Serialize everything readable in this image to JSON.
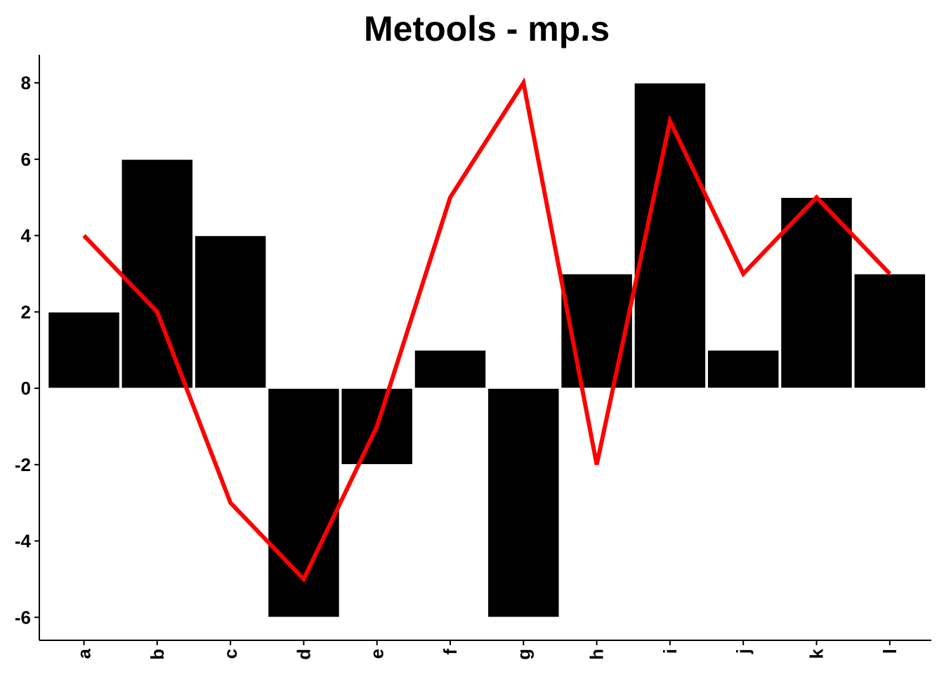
{
  "chart_data": {
    "type": "bar",
    "title": "Metools - mp.s",
    "xlabel": "",
    "ylabel": "",
    "categories": [
      "a",
      "b",
      "c",
      "d",
      "e",
      "f",
      "g",
      "h",
      "i",
      "j",
      "k",
      "l"
    ],
    "series": [
      {
        "type": "bar",
        "values": [
          2,
          6,
          4,
          -6,
          -2,
          1,
          -6,
          3,
          8,
          1,
          5,
          3
        ],
        "color": "#000000"
      },
      {
        "type": "line",
        "values": [
          4,
          2,
          -3,
          -5,
          -1,
          5,
          8,
          -2,
          7,
          3,
          5,
          3
        ],
        "color": "#ff0000"
      }
    ],
    "yticks": [
      -6,
      -4,
      -2,
      0,
      2,
      4,
      6,
      8
    ],
    "ylim": [
      -6.7,
      8.7
    ],
    "grid": false,
    "legend": "none"
  }
}
